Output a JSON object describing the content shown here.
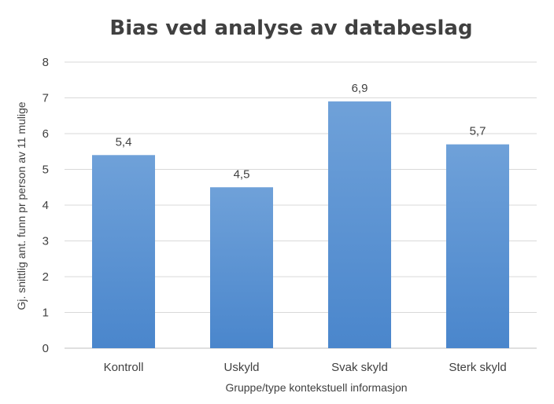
{
  "chart_data": {
    "type": "bar",
    "title": "Bias ved analyse av databeslag",
    "xlabel": "Gruppe/type kontekstuell informasjon",
    "ylabel": "Gj. snittlig ant. funn pr person av 11 mulige",
    "categories": [
      "Kontroll",
      "Uskyld",
      "Svak skyld",
      "Sterk skyld"
    ],
    "values": [
      5.4,
      4.5,
      6.9,
      5.7
    ],
    "data_labels": [
      "5,4",
      "4,5",
      "6,9",
      "5,7"
    ],
    "ylim": [
      0,
      8
    ],
    "yticks": [
      0,
      1,
      2,
      3,
      4,
      5,
      6,
      7,
      8
    ],
    "grid": true,
    "legend": "none",
    "colors": {
      "bar_top": "#6fa1d9",
      "bar_bottom": "#4a86cc",
      "text": "#404040",
      "grid": "#d9d9d9"
    }
  }
}
